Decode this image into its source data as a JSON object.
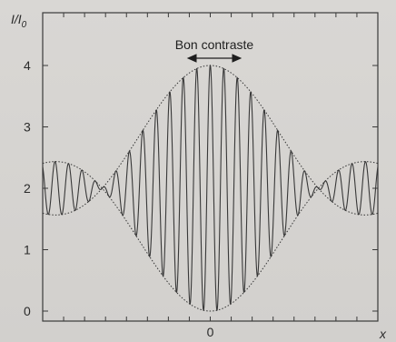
{
  "chart_data": {
    "type": "line",
    "title": "",
    "ylabel": "I/I",
    "ylabel_subscript": "0",
    "xlabel": "x",
    "xlim": [
      -1,
      1
    ],
    "ylim": [
      0,
      4.3
    ],
    "y_ticks": [
      0,
      1,
      2,
      3,
      4
    ],
    "y_tick_labels": [
      "0",
      "1",
      "2",
      "3",
      "4"
    ],
    "x_ticks": [
      0
    ],
    "x_tick_labels": [
      "0"
    ],
    "grid": false,
    "annotation": {
      "text": "Bon contraste",
      "x": 0,
      "y": 4.3
    },
    "series": [
      {
        "style": "solid",
        "formula": "I/I0 = 2 + 2*sinc(1.55*pi*x)*cos(78*x)",
        "sample_points": [
          {
            "x": -1.0,
            "y": 2.0
          },
          {
            "x": -0.5,
            "y": 1.6
          },
          {
            "x": 0.0,
            "y": 4.0
          },
          {
            "x": 0.0403,
            "y": 0.0
          },
          {
            "x": 0.5,
            "y": 2.3
          },
          {
            "x": 1.0,
            "y": 2.0
          }
        ]
      },
      {
        "style": "dotted",
        "name": "",
        "formula": "2 + 2*|sinc(1.55*pi*x)|"
      },
      {
        "style": "dotted",
        "name": "",
        "formula": "2 - 2*|sinc(1.55*pi*x)|"
      }
    ]
  }
}
